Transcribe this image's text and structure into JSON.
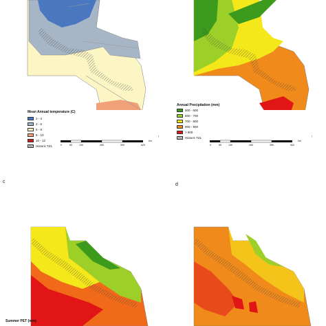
{
  "panels": {
    "a": {
      "legend_title": "Mean Annual temperature (C)",
      "classes": [
        {
          "label": "2 - 4",
          "color": "#4a78c0"
        },
        {
          "label": "4 - 6",
          "color": "#a7b6c6"
        },
        {
          "label": "6 - 8",
          "color": "#fbf6c4"
        },
        {
          "label": "8 - 10",
          "color": "#f1a07a"
        },
        {
          "label": "10 - 12",
          "color": "#cc1b1b"
        }
      ],
      "tzl_label": "Historic TZL",
      "scale_labels": [
        "0",
        "65",
        "130",
        "260",
        "390",
        "520",
        "km"
      ]
    },
    "b": {
      "legend_title": "Annual Precipitation (mm)",
      "classes": [
        {
          "label": "500 - 600",
          "color": "#3c9a1d"
        },
        {
          "label": "600 - 700",
          "color": "#9ccf27"
        },
        {
          "label": "700 - 800",
          "color": "#f5e81a"
        },
        {
          "label": "800 - 900",
          "color": "#f08a1a"
        },
        {
          "label": "> 900",
          "color": "#e11515"
        }
      ],
      "tzl_label": "Historic TZL",
      "scale_labels": [
        "0",
        "65",
        "130",
        "260",
        "390",
        "520",
        "km"
      ]
    },
    "c": {
      "letter": "c",
      "legend_title": "Summer PET (mm)"
    },
    "d": {
      "letter": "d"
    }
  }
}
